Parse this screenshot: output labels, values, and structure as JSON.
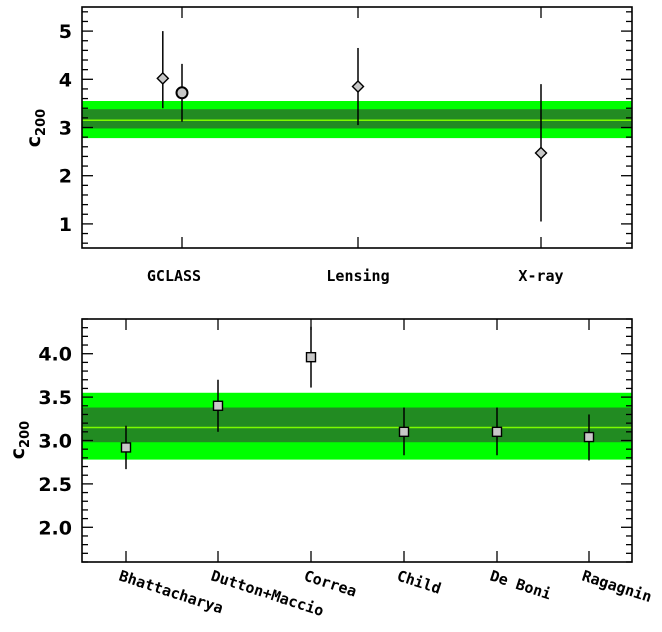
{
  "chart_data": [
    {
      "type": "scatter",
      "ylabel": "c",
      "ylabel_subscript": "200",
      "ylim": [
        0.5,
        5.5
      ],
      "yticks": [
        "1",
        "2",
        "3",
        "4",
        "5"
      ],
      "categories": [
        "GCLASS",
        "Lensing",
        "X-ray"
      ],
      "band": {
        "outer": [
          2.78,
          3.55
        ],
        "inner": [
          2.98,
          3.38
        ],
        "center": 3.15
      },
      "colors": {
        "outer_band": "#00ff00",
        "inner_band": "#228b22",
        "center_line": "#7cfc00",
        "marker_fill": "#c8c8c8"
      },
      "points": [
        {
          "category": "GCLASS",
          "offset": -0.32,
          "y": 4.02,
          "ylow": 3.4,
          "yhigh": 5.0,
          "marker": "diamond"
        },
        {
          "category": "GCLASS",
          "offset": 0.0,
          "y": 3.72,
          "ylow": 3.12,
          "yhigh": 4.32,
          "marker": "circle"
        },
        {
          "category": "Lensing",
          "offset": 0.0,
          "y": 3.85,
          "ylow": 3.05,
          "yhigh": 4.65,
          "marker": "diamond"
        },
        {
          "category": "X-ray",
          "offset": 0.0,
          "y": 2.47,
          "ylow": 1.05,
          "yhigh": 3.9,
          "marker": "diamond"
        }
      ]
    },
    {
      "type": "scatter",
      "ylabel": "c",
      "ylabel_subscript": "200",
      "ylim": [
        1.6,
        4.4
      ],
      "yticks": [
        "2.0",
        "2.5",
        "3.0",
        "3.5",
        "4.0"
      ],
      "categories": [
        "Bhattacharya",
        "Dutton+Maccio",
        "Correa",
        "Child",
        "De Boni",
        "Ragagnin"
      ],
      "band": {
        "outer": [
          2.78,
          3.55
        ],
        "inner": [
          2.98,
          3.38
        ],
        "center": 3.15
      },
      "colors": {
        "outer_band": "#00ff00",
        "inner_band": "#228b22",
        "center_line": "#7cfc00",
        "marker_fill": "#c8c8c8"
      },
      "points": [
        {
          "category": "Bhattacharya",
          "y": 2.92,
          "ylow": 2.67,
          "yhigh": 3.17,
          "marker": "square"
        },
        {
          "category": "Dutton+Maccio",
          "y": 3.4,
          "ylow": 3.1,
          "yhigh": 3.7,
          "marker": "square"
        },
        {
          "category": "Correa",
          "y": 3.96,
          "ylow": 3.61,
          "yhigh": 4.31,
          "marker": "square"
        },
        {
          "category": "Child",
          "y": 3.1,
          "ylow": 2.83,
          "yhigh": 3.38,
          "marker": "square"
        },
        {
          "category": "De Boni",
          "y": 3.1,
          "ylow": 2.83,
          "yhigh": 3.38,
          "marker": "square"
        },
        {
          "category": "Ragagnin",
          "y": 3.04,
          "ylow": 2.77,
          "yhigh": 3.3,
          "marker": "square"
        }
      ]
    }
  ]
}
